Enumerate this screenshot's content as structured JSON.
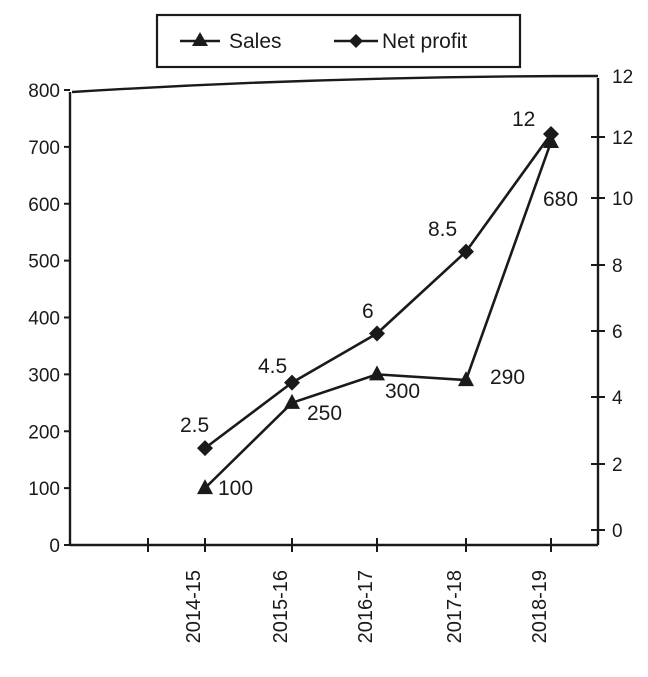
{
  "chart_data": {
    "type": "line",
    "categories": [
      "2014-15",
      "2015-16",
      "2016-17",
      "2017-18",
      "2018-19"
    ],
    "series": [
      {
        "name": "Sales",
        "axis": "left",
        "marker": "triangle",
        "values": [
          100,
          250,
          300,
          290,
          680
        ],
        "labels": [
          "100",
          "250",
          "300",
          "290",
          "680"
        ]
      },
      {
        "name": "Net profit",
        "axis": "right",
        "marker": "diamond",
        "values": [
          2.5,
          4.5,
          6,
          8.5,
          12
        ],
        "labels": [
          "2.5",
          "4.5",
          "6",
          "8.5",
          "12"
        ]
      }
    ],
    "y_left": {
      "ticks": [
        "0",
        "100",
        "200",
        "300",
        "400",
        "500",
        "600",
        "700",
        "800"
      ],
      "lim": [
        0,
        800
      ]
    },
    "y_right": {
      "ticks": [
        "0",
        "2",
        "4",
        "6",
        "8",
        "10",
        "12",
        "12"
      ],
      "lim": [
        0,
        12
      ]
    },
    "legend": {
      "placement": "top-center",
      "entries": [
        "Sales",
        "Net profit"
      ]
    },
    "grid": false,
    "colors": {
      "line": "#1a1a1a",
      "background": "#ffffff"
    }
  }
}
